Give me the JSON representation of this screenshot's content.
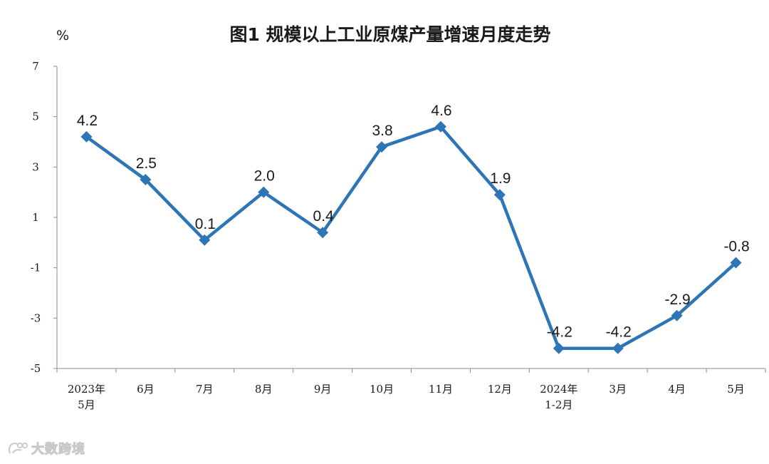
{
  "chart_data": {
    "type": "line",
    "title": "图1  规模以上工业原煤产量增速月度走势",
    "unit": "%",
    "categories": [
      [
        "2023年",
        "5月"
      ],
      [
        "6月"
      ],
      [
        "7月"
      ],
      [
        "8月"
      ],
      [
        "9月"
      ],
      [
        "10月"
      ],
      [
        "11月"
      ],
      [
        "12月"
      ],
      [
        "2024年",
        "1-2月"
      ],
      [
        "3月"
      ],
      [
        "4月"
      ],
      [
        "5月"
      ]
    ],
    "values": [
      4.2,
      2.5,
      0.1,
      2.0,
      0.4,
      3.8,
      4.6,
      1.9,
      -4.2,
      -4.2,
      -2.9,
      -0.8
    ],
    "value_labels": [
      "4.2",
      "2.5",
      "0.1",
      "2.0",
      "0.4",
      "3.8",
      "4.6",
      "1.9",
      "-4.2",
      "-4.2",
      "-2.9",
      "-0.8"
    ],
    "ylim": [
      -5,
      7
    ],
    "yticks": [
      7,
      5,
      3,
      1,
      -1,
      -3,
      -5
    ],
    "grid": false,
    "legend": "none",
    "marker": "diamond",
    "line_color": "#2e75b6"
  },
  "watermark": {
    "text": "大数跨境",
    "icon": "brand-logo-icon"
  }
}
